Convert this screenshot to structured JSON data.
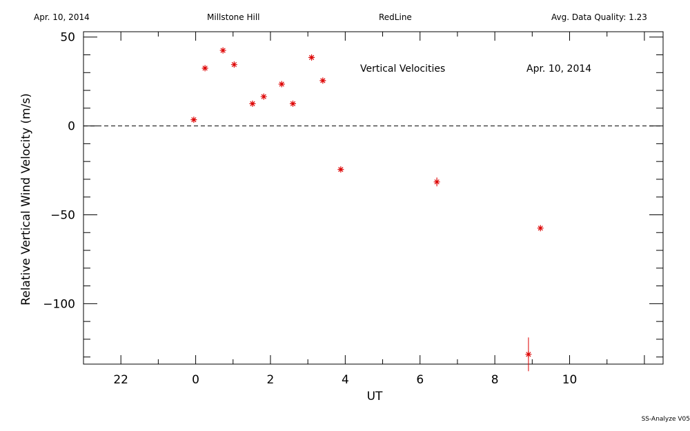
{
  "header": {
    "date": "Apr. 10, 2014",
    "site": "Millstone Hill",
    "line": "RedLine",
    "quality": "Avg. Data Quality: 1.23"
  },
  "footer": "SS-Analyze V05",
  "chart_data": {
    "type": "scatter",
    "title": "Vertical Velocities",
    "annotation_date": "Apr. 10, 2014",
    "xlabel": "UT",
    "ylabel": "Relative Vertical Wind Velocity (m/s)",
    "xlim": [
      -3,
      12.5
    ],
    "ylim": [
      -134,
      53
    ],
    "x_ticks": [
      22,
      0,
      2,
      4,
      6,
      8,
      10
    ],
    "x_tick_values": [
      -2,
      0,
      2,
      4,
      6,
      8,
      10
    ],
    "y_ticks": [
      50,
      0,
      -50,
      -100
    ],
    "zero_line": "dashed",
    "marker_color": "#dd0000",
    "points": [
      {
        "x": -0.05,
        "y": 3.5,
        "err": 0.5
      },
      {
        "x": 0.25,
        "y": 32.5,
        "err": 0.5
      },
      {
        "x": 0.73,
        "y": 42.5,
        "err": 0.5
      },
      {
        "x": 1.03,
        "y": 34.5,
        "err": 0.5
      },
      {
        "x": 1.52,
        "y": 12.5,
        "err": 0.5
      },
      {
        "x": 1.82,
        "y": 16.5,
        "err": 0.5
      },
      {
        "x": 2.3,
        "y": 23.5,
        "err": 0.5
      },
      {
        "x": 2.6,
        "y": 12.5,
        "err": 0.5
      },
      {
        "x": 3.1,
        "y": 38.5,
        "err": 0.5
      },
      {
        "x": 3.4,
        "y": 25.5,
        "err": 0.5
      },
      {
        "x": 3.88,
        "y": -24.5,
        "err": 0.5
      },
      {
        "x": 6.45,
        "y": -31.5,
        "err": 2.5
      },
      {
        "x": 8.9,
        "y": -128.5,
        "err": 9.5
      },
      {
        "x": 9.22,
        "y": -57.5,
        "err": 0.5
      }
    ]
  }
}
